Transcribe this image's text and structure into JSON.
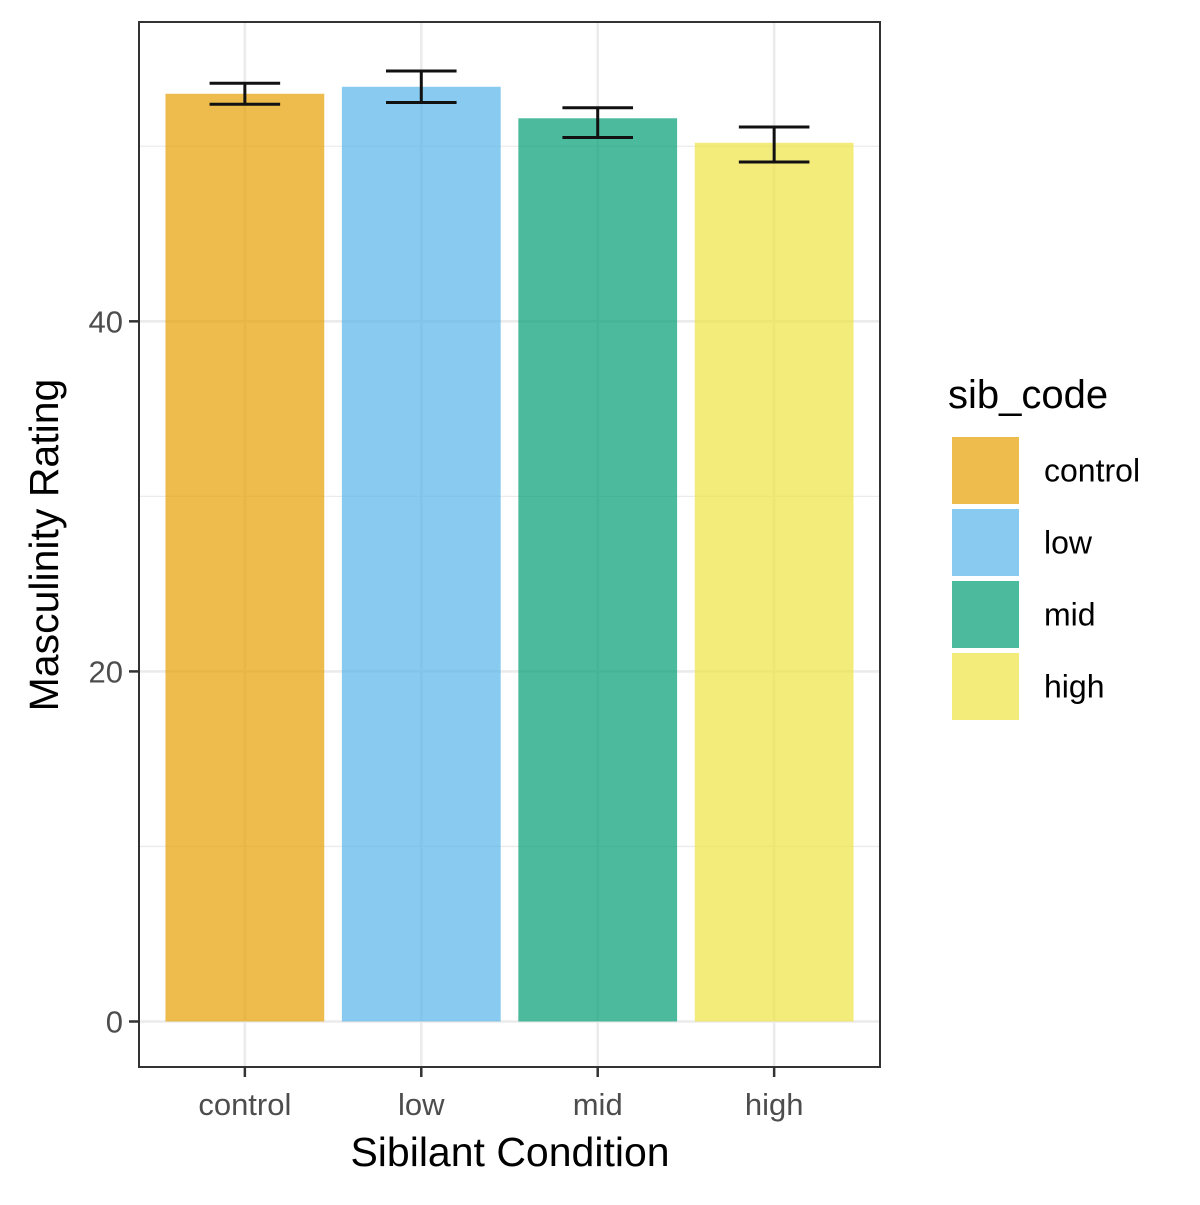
{
  "chart_data": {
    "type": "bar",
    "categories": [
      "control",
      "low",
      "mid",
      "high"
    ],
    "values": [
      53.0,
      53.4,
      51.6,
      50.2
    ],
    "error_bars": {
      "lower": [
        52.4,
        52.5,
        50.5,
        49.1
      ],
      "upper": [
        53.6,
        54.3,
        52.2,
        51.1
      ]
    },
    "colors": [
      "#E69F00",
      "#56B4E9",
      "#009E73",
      "#F0E442"
    ],
    "bar_opacity": 0.7,
    "xlabel": "Sibilant Condition",
    "ylabel": "Masculinity Rating",
    "ylim": [
      -2.6,
      57.1
    ],
    "yticks": [
      0,
      20,
      40
    ],
    "minor_yticks": [
      10,
      30,
      50
    ],
    "grid": true,
    "theme": "bw",
    "legend": {
      "title": "sib_code",
      "position": "right",
      "entries": [
        "control",
        "low",
        "mid",
        "high"
      ]
    }
  }
}
